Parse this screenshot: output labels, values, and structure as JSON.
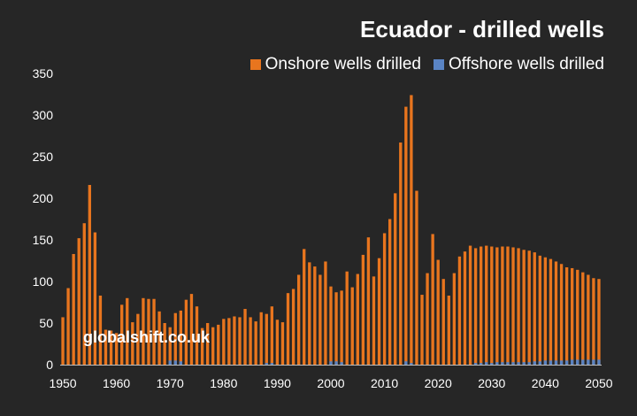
{
  "title": "Ecuador - drilled wells",
  "watermark": "globalshift.co.uk",
  "colors": {
    "background": "#262626",
    "onshore": "#e8751e",
    "offshore": "#5a84c4",
    "text": "#ffffff"
  },
  "chart_data": {
    "type": "bar",
    "stacked": true,
    "title": "Ecuador - drilled wells",
    "xlabel": "",
    "ylabel": "",
    "ylim": [
      0,
      350
    ],
    "yticks": [
      0,
      50,
      100,
      150,
      200,
      250,
      300,
      350
    ],
    "xticks": [
      1950,
      1960,
      1970,
      1980,
      1990,
      2000,
      2010,
      2020,
      2030,
      2040,
      2050
    ],
    "legend_position": "top-right",
    "x": [
      1950,
      1951,
      1952,
      1953,
      1954,
      1955,
      1956,
      1957,
      1958,
      1959,
      1960,
      1961,
      1962,
      1963,
      1964,
      1965,
      1966,
      1967,
      1968,
      1969,
      1970,
      1971,
      1972,
      1973,
      1974,
      1975,
      1976,
      1977,
      1978,
      1979,
      1980,
      1981,
      1982,
      1983,
      1984,
      1985,
      1986,
      1987,
      1988,
      1989,
      1990,
      1991,
      1992,
      1993,
      1994,
      1995,
      1996,
      1997,
      1998,
      1999,
      2000,
      2001,
      2002,
      2003,
      2004,
      2005,
      2006,
      2007,
      2008,
      2009,
      2010,
      2011,
      2012,
      2013,
      2014,
      2015,
      2016,
      2017,
      2018,
      2019,
      2020,
      2021,
      2022,
      2023,
      2024,
      2025,
      2026,
      2027,
      2028,
      2029,
      2030,
      2031,
      2032,
      2033,
      2034,
      2035,
      2036,
      2037,
      2038,
      2039,
      2040,
      2041,
      2042,
      2043,
      2044,
      2045,
      2046,
      2047,
      2048,
      2049,
      2050
    ],
    "series": [
      {
        "name": "Onshore wells drilled",
        "values": [
          57,
          92,
          133,
          152,
          170,
          216,
          159,
          83,
          42,
          41,
          38,
          72,
          80,
          51,
          61,
          80,
          79,
          79,
          64,
          50,
          45,
          62,
          65,
          78,
          85,
          70,
          44,
          50,
          45,
          48,
          55,
          56,
          58,
          57,
          67,
          57,
          52,
          63,
          61,
          70,
          54,
          51,
          86,
          91,
          108,
          139,
          123,
          118,
          108,
          124,
          94,
          87,
          89,
          112,
          93,
          109,
          132,
          153,
          106,
          128,
          158,
          175,
          206,
          267,
          310,
          324,
          209,
          84,
          110,
          157,
          126,
          103,
          83,
          110,
          130,
          136,
          143,
          140,
          142,
          143,
          142,
          141,
          142,
          142,
          141,
          140,
          138,
          137,
          135,
          131,
          129,
          127,
          124,
          121,
          117,
          116,
          114,
          111,
          108,
          104,
          103
        ]
      },
      {
        "name": "Offshore wells drilled",
        "values": [
          0,
          0,
          0,
          0,
          0,
          0,
          0,
          0,
          0,
          0,
          0,
          0,
          0,
          0,
          0,
          0,
          0,
          0,
          0,
          0,
          5,
          5,
          4,
          0,
          0,
          0,
          0,
          0,
          0,
          0,
          0,
          0,
          0,
          0,
          0,
          0,
          0,
          0,
          2,
          2,
          0,
          0,
          0,
          0,
          0,
          0,
          0,
          0,
          0,
          0,
          4,
          4,
          3,
          0,
          0,
          0,
          0,
          0,
          0,
          0,
          0,
          0,
          0,
          0,
          4,
          2,
          0,
          0,
          0,
          0,
          0,
          0,
          0,
          0,
          0,
          0,
          0,
          2,
          2,
          3,
          2,
          3,
          3,
          3,
          3,
          3,
          3,
          3,
          4,
          4,
          5,
          5,
          5,
          5,
          5,
          6,
          6,
          6,
          6,
          6,
          6
        ]
      }
    ]
  }
}
